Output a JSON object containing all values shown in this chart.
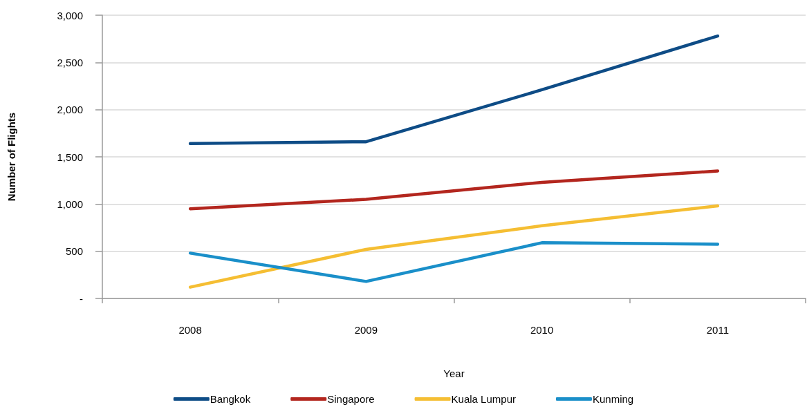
{
  "chart_data": {
    "type": "line",
    "xlabel": "Year",
    "ylabel": "Number of Flights",
    "categories": [
      "2008",
      "2009",
      "2010",
      "2011"
    ],
    "series": [
      {
        "name": "Bangkok",
        "color": "#0e4c86",
        "values": [
          1640,
          1660,
          2210,
          2780
        ]
      },
      {
        "name": "Singapore",
        "color": "#b3261e",
        "values": [
          950,
          1050,
          1230,
          1350
        ]
      },
      {
        "name": "Kuala Lumpur",
        "color": "#f5be33",
        "values": [
          120,
          520,
          770,
          980
        ]
      },
      {
        "name": "Kunming",
        "color": "#1a8fc9",
        "values": [
          480,
          180,
          590,
          575
        ]
      }
    ],
    "ylim": [
      0,
      3000
    ],
    "yticks": [
      {
        "value": 0,
        "label": "-"
      },
      500,
      {
        "value": 1000,
        "label": "1,000"
      },
      {
        "value": 1500,
        "label": "1,500"
      },
      {
        "value": 2000,
        "label": "2,000"
      },
      {
        "value": 2500,
        "label": "2,500"
      },
      {
        "value": 3000,
        "label": "3,000"
      }
    ],
    "grid": "y",
    "legend": "bottom",
    "marker": "none",
    "line_style": "solid"
  }
}
